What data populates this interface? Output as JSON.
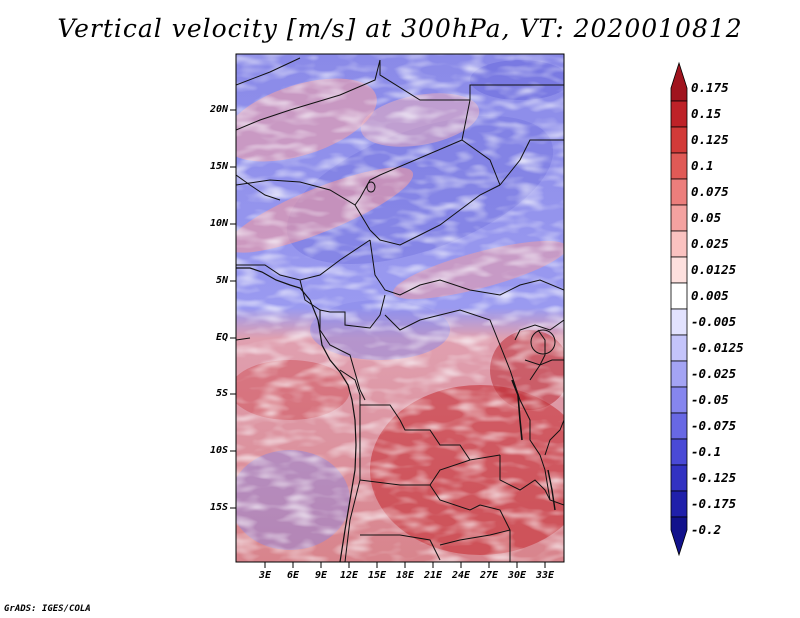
{
  "title": "Vertical velocity [m/s] at 300hPa, VT: 2020010812",
  "footer": "GrADS: IGES/COLA",
  "lat_labels": [
    "20N",
    "15N",
    "10N",
    "5N",
    "EQ",
    "5S",
    "10S",
    "15S"
  ],
  "lon_labels": [
    "3E",
    "6E",
    "9E",
    "12E",
    "15E",
    "18E",
    "21E",
    "24E",
    "27E",
    "30E",
    "33E"
  ],
  "colorbar": {
    "labels": [
      "0.175",
      "0.15",
      "0.125",
      "0.1",
      "0.075",
      "0.05",
      "0.025",
      "0.0125",
      "0.005",
      "-0.005",
      "-0.0125",
      "-0.025",
      "-0.05",
      "-0.075",
      "-0.1",
      "-0.125",
      "-0.175",
      "-0.2"
    ],
    "colors": [
      "#a0141e",
      "#be2228",
      "#d23a38",
      "#e05a56",
      "#ec7e7c",
      "#f4a2a0",
      "#fac2c0",
      "#fde0de",
      "#ffffff",
      "#e2e2fe",
      "#c4c4fa",
      "#a4a4f4",
      "#8686ee",
      "#6868e4",
      "#4a4ad6",
      "#3232c2",
      "#2020aa",
      "#12128c"
    ]
  }
}
